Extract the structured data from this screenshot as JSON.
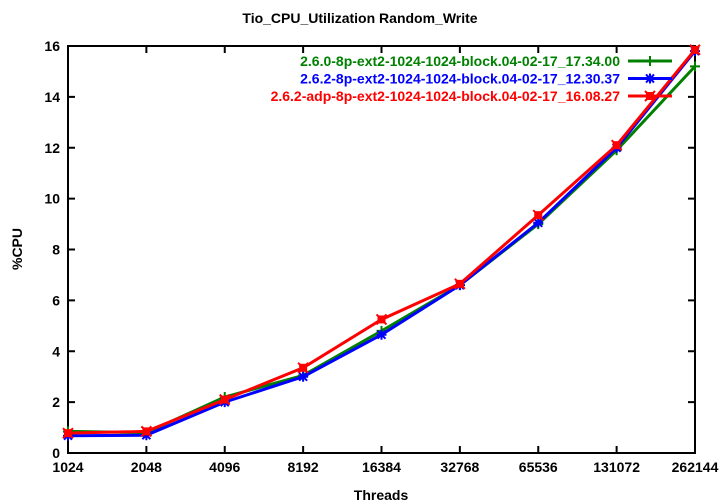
{
  "chart_data": {
    "type": "line",
    "title": "Tio_CPU_Utilization Random_Write",
    "xlabel": "Threads",
    "ylabel": "%CPU",
    "x_scale": "log2-equally-spaced",
    "categories": [
      "1024",
      "2048",
      "4096",
      "8192",
      "16384",
      "32768",
      "65536",
      "131072",
      "262144"
    ],
    "yticks": [
      "0",
      "2",
      "4",
      "6",
      "8",
      "10",
      "12",
      "14",
      "16"
    ],
    "ylim": [
      0,
      16
    ],
    "grid": false,
    "legend_position": "top-right-inside",
    "background_color": "#ffffff",
    "axis_color": "#000000",
    "series": [
      {
        "name": "2.6.0-8p-ext2-1024-1024-block.04-02-17_17.34.00",
        "color": "#008000",
        "marker": "plus",
        "values": [
          0.85,
          0.8,
          2.2,
          3.05,
          4.8,
          6.6,
          9.0,
          11.9,
          15.2
        ]
      },
      {
        "name": "2.6.2-8p-ext2-1024-1024-block.04-02-17_12.30.37",
        "color": "#0000ff",
        "marker": "asterisk",
        "values": [
          0.68,
          0.7,
          2.0,
          3.0,
          4.65,
          6.6,
          9.05,
          12.0,
          15.8
        ]
      },
      {
        "name": "2.6.2-adp-8p-ext2-1024-1024-block.04-02-17_16.08.27",
        "color": "#ff0000",
        "marker": "filled-square-x",
        "values": [
          0.78,
          0.85,
          2.1,
          3.35,
          5.25,
          6.65,
          9.35,
          12.1,
          15.85
        ]
      }
    ]
  }
}
